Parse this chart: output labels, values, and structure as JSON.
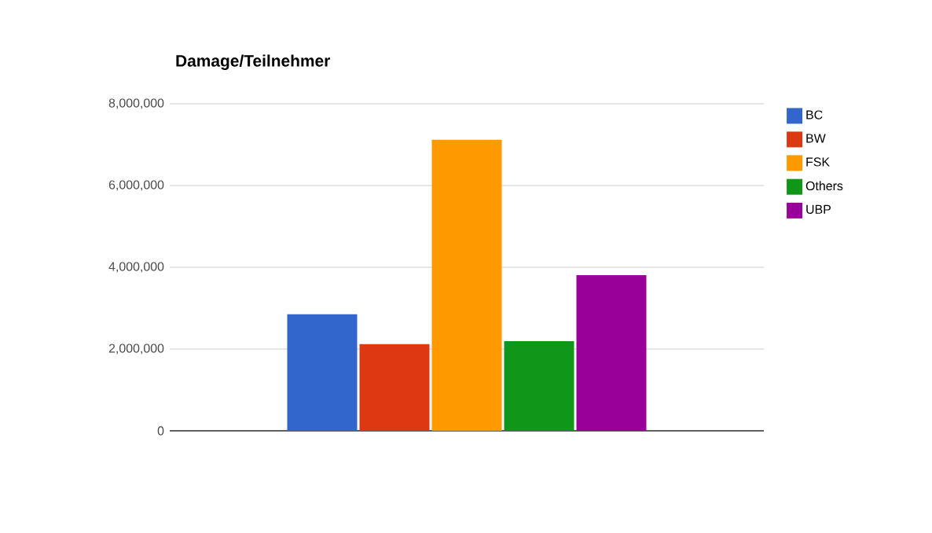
{
  "chart_data": {
    "type": "bar",
    "title": "Damage/Teilnehmer",
    "categories": [
      null
    ],
    "series": [
      {
        "name": "BC",
        "color": "#3366cc",
        "values": [
          2850000
        ]
      },
      {
        "name": "BW",
        "color": "#dc3912",
        "values": [
          2120000
        ]
      },
      {
        "name": "FSK",
        "color": "#ff9900",
        "values": [
          7120000
        ]
      },
      {
        "name": "Others",
        "color": "#109618",
        "values": [
          2190000
        ]
      },
      {
        "name": "UBP",
        "color": "#990099",
        "values": [
          3810000
        ]
      }
    ],
    "ylim": [
      0,
      8000000
    ],
    "yticks": [
      {
        "value": 0,
        "label": "0"
      },
      {
        "value": 2000000,
        "label": "2,000,000"
      },
      {
        "value": 4000000,
        "label": "4,000,000"
      },
      {
        "value": 6000000,
        "label": "6,000,000"
      },
      {
        "value": 8000000,
        "label": "8,000,000"
      }
    ],
    "grid": "y",
    "legend": "right"
  }
}
